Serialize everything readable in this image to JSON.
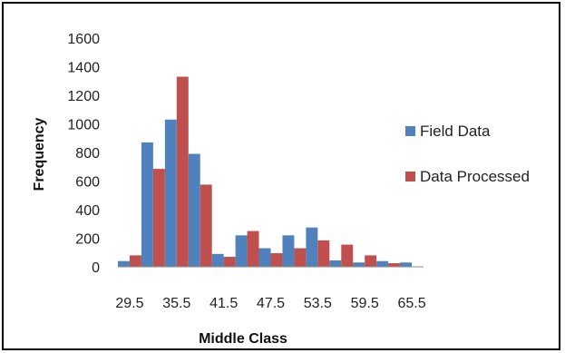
{
  "chart_data": {
    "type": "bar",
    "xlabel": "Middle Class",
    "ylabel": "Frequency",
    "ylim": [
      0,
      1600
    ],
    "yticks": [
      0,
      200,
      400,
      600,
      800,
      1000,
      1200,
      1400,
      1600
    ],
    "categories": [
      "29.5",
      "32.5",
      "35.5",
      "38.5",
      "41.5",
      "44.5",
      "47.5",
      "50.5",
      "53.5",
      "56.5",
      "59.5",
      "62.5",
      "65.5"
    ],
    "x_tick_labels": [
      "29.5",
      "35.5",
      "41.5",
      "47.5",
      "53.5",
      "59.5",
      "65.5"
    ],
    "grid": false,
    "legend_position": "right",
    "series": [
      {
        "name": "Field Data",
        "color": "#4F81BD",
        "values": [
          40,
          870,
          1030,
          790,
          90,
          220,
          130,
          220,
          275,
          45,
          30,
          40,
          30
        ]
      },
      {
        "name": "Data Processed",
        "color": "#C0504D",
        "values": [
          80,
          685,
          1330,
          575,
          70,
          250,
          95,
          130,
          185,
          155,
          80,
          25,
          0
        ]
      }
    ]
  }
}
